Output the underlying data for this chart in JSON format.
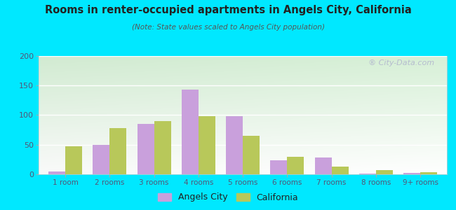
{
  "title": "Rooms in renter-occupied apartments in Angels City, California",
  "subtitle": "(Note: State values scaled to Angels City population)",
  "categories": [
    "1 room",
    "2 rooms",
    "3 rooms",
    "4 rooms",
    "5 rooms",
    "6 rooms",
    "7 rooms",
    "8 rooms",
    "9+ rooms"
  ],
  "angels_city": [
    5,
    49,
    85,
    143,
    98,
    24,
    28,
    1,
    2
  ],
  "california": [
    47,
    78,
    90,
    98,
    65,
    30,
    13,
    7,
    3
  ],
  "angels_city_color": "#c9a0dc",
  "california_color": "#b8c85a",
  "bg_outer": "#00e8ff",
  "ylim": [
    0,
    200
  ],
  "yticks": [
    0,
    50,
    100,
    150,
    200
  ],
  "bar_width": 0.38,
  "legend_labels": [
    "Angels City",
    "California"
  ],
  "watermark": "® City-Data.com",
  "title_color": "#222222",
  "subtitle_color": "#555555",
  "tick_color": "#555577"
}
